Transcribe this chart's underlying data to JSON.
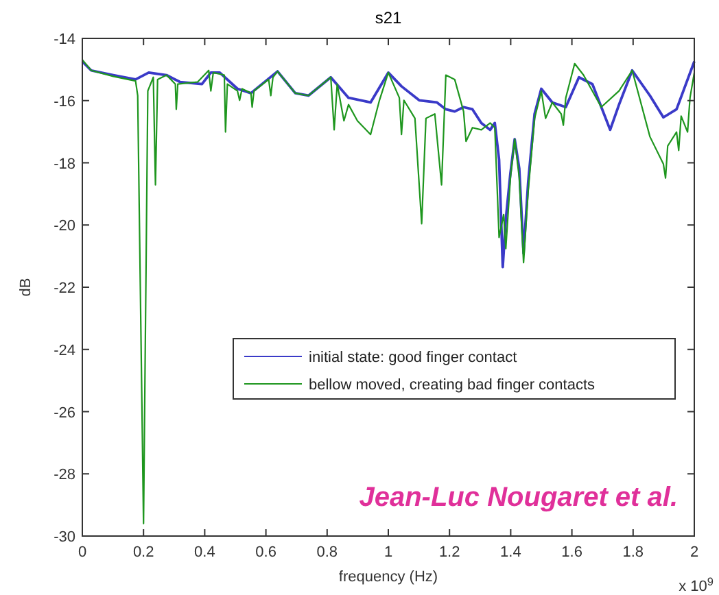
{
  "chart_data": {
    "type": "line",
    "title": "s21",
    "xlabel": "frequency (Hz)",
    "ylabel": "dB",
    "xlim": [
      0,
      2
    ],
    "xticks": [
      0,
      0.2,
      0.4,
      0.6,
      0.8,
      1,
      1.2,
      1.4,
      1.6,
      1.8,
      2
    ],
    "ylim": [
      -30,
      -14
    ],
    "yticks": [
      -30,
      -28,
      -26,
      -24,
      -22,
      -20,
      -18,
      -16,
      -14
    ],
    "grid": false,
    "legend": "right",
    "marker": "none",
    "line_style": "solid",
    "annotations": [
      "x 10$^{9}$",
      "Jean-Luc Nougaret et al."
    ],
    "series": [
      {
        "name": "initial state: good finger contact",
        "color": "#3a3ac8",
        "x": [
          0,
          0.029,
          0.101,
          0.174,
          0.217,
          0.275,
          0.319,
          0.391,
          0.42,
          0.449,
          0.507,
          0.551,
          0.638,
          0.696,
          0.739,
          0.812,
          0.87,
          0.942,
          1.0,
          1.043,
          1.101,
          1.159,
          1.188,
          1.217,
          1.246,
          1.275,
          1.304,
          1.333,
          1.348,
          1.362,
          1.374,
          1.384,
          1.399,
          1.413,
          1.428,
          1.442,
          1.457,
          1.478,
          1.5,
          1.536,
          1.58,
          1.623,
          1.667,
          1.725,
          1.754,
          1.797,
          1.855,
          1.899,
          1.942,
          2.0
        ],
        "values": [
          -14.74,
          -15.03,
          -15.18,
          -15.32,
          -15.1,
          -15.18,
          -15.4,
          -15.47,
          -15.1,
          -15.1,
          -15.62,
          -15.76,
          -15.06,
          -15.76,
          -15.84,
          -15.25,
          -15.91,
          -16.06,
          -15.1,
          -15.54,
          -15.99,
          -16.06,
          -16.28,
          -16.35,
          -16.21,
          -16.28,
          -16.72,
          -16.94,
          -16.72,
          -17.9,
          -21.35,
          -19.81,
          -18.34,
          -17.24,
          -18.19,
          -20.91,
          -18.63,
          -16.43,
          -15.62,
          -16.06,
          -16.21,
          -15.25,
          -15.47,
          -16.94,
          -16.13,
          -15.03,
          -15.84,
          -16.54,
          -16.28,
          -14.74
        ]
      },
      {
        "name": "bellow moved, creating bad finger contacts",
        "color": "#1e961e",
        "x": [
          0,
          0.029,
          0.101,
          0.174,
          0.181,
          0.2,
          0.214,
          0.232,
          0.239,
          0.246,
          0.275,
          0.304,
          0.307,
          0.312,
          0.377,
          0.413,
          0.42,
          0.428,
          0.464,
          0.468,
          0.474,
          0.507,
          0.514,
          0.522,
          0.551,
          0.555,
          0.561,
          0.609,
          0.616,
          0.623,
          0.638,
          0.696,
          0.739,
          0.812,
          0.823,
          0.833,
          0.855,
          0.87,
          0.899,
          0.942,
          0.971,
          1.0,
          1.036,
          1.043,
          1.051,
          1.087,
          1.109,
          1.123,
          1.152,
          1.174,
          1.188,
          1.217,
          1.246,
          1.254,
          1.275,
          1.304,
          1.333,
          1.348,
          1.362,
          1.377,
          1.384,
          1.399,
          1.413,
          1.428,
          1.442,
          1.457,
          1.478,
          1.5,
          1.514,
          1.536,
          1.565,
          1.572,
          1.58,
          1.609,
          1.638,
          1.696,
          1.754,
          1.797,
          1.855,
          1.899,
          1.906,
          1.913,
          1.942,
          1.949,
          1.957,
          1.978,
          1.986,
          2.0
        ],
        "values": [
          -14.69,
          -15.03,
          -15.22,
          -15.37,
          -15.84,
          -29.6,
          -15.69,
          -15.25,
          -18.71,
          -15.32,
          -15.18,
          -15.47,
          -16.28,
          -15.47,
          -15.4,
          -15.03,
          -15.69,
          -15.1,
          -15.18,
          -17.01,
          -15.47,
          -15.69,
          -15.99,
          -15.62,
          -15.76,
          -16.21,
          -15.69,
          -15.32,
          -15.84,
          -15.25,
          -15.06,
          -15.76,
          -15.84,
          -15.25,
          -16.94,
          -15.47,
          -16.65,
          -16.13,
          -16.65,
          -17.09,
          -15.99,
          -15.1,
          -15.91,
          -17.09,
          -15.99,
          -16.57,
          -19.96,
          -16.57,
          -16.43,
          -18.71,
          -15.18,
          -15.32,
          -16.35,
          -17.31,
          -16.87,
          -16.94,
          -16.72,
          -16.87,
          -20.4,
          -19.66,
          -20.76,
          -18.49,
          -17.24,
          -18.49,
          -21.21,
          -18.93,
          -16.57,
          -15.69,
          -16.57,
          -16.06,
          -16.43,
          -16.79,
          -15.91,
          -14.81,
          -15.18,
          -16.21,
          -15.69,
          -15.03,
          -17.16,
          -18.04,
          -18.49,
          -17.46,
          -17.01,
          -17.6,
          -16.5,
          -17.01,
          -15.91,
          -15.1
        ]
      }
    ]
  }
}
